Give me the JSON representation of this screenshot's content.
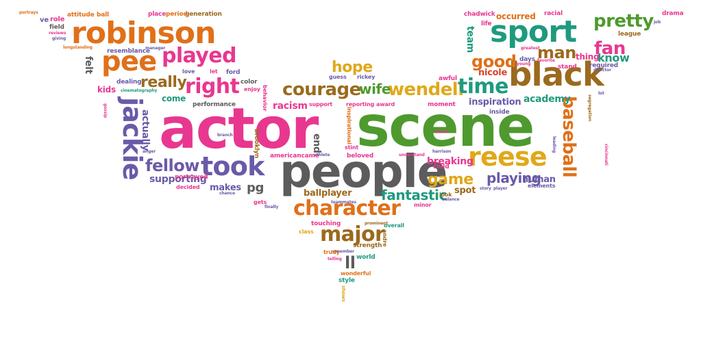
{
  "colors": {
    "pink": "#e8378f",
    "green": "#4e9a2e",
    "gray": "#5c5c5c",
    "orange": "#e07019",
    "teal": "#1f9a7e",
    "brown": "#9b6a1d",
    "purple": "#6a5aa8",
    "gold": "#e0a81a",
    "red": "#d9432b"
  },
  "words": [
    {
      "text": "actor",
      "color": "pink"
    },
    {
      "text": "scene",
      "color": "green"
    },
    {
      "text": "people",
      "color": "gray"
    },
    {
      "text": "black",
      "color": "brown"
    },
    {
      "text": "robinson",
      "color": "orange"
    },
    {
      "text": "sport",
      "color": "teal"
    },
    {
      "text": "jackie",
      "color": "purple"
    },
    {
      "text": "reese",
      "color": "gold"
    },
    {
      "text": "pee",
      "color": "orange"
    },
    {
      "text": "took",
      "color": "purple"
    },
    {
      "text": "character",
      "color": "orange"
    },
    {
      "text": "baseball",
      "color": "orange"
    },
    {
      "text": "played",
      "color": "pink"
    },
    {
      "text": "right",
      "color": "pink"
    },
    {
      "text": "courage",
      "color": "brown"
    },
    {
      "text": "wendell",
      "color": "gold"
    },
    {
      "text": "time",
      "color": "teal"
    },
    {
      "text": "major",
      "color": "brown"
    },
    {
      "text": "fellow",
      "color": "purple"
    },
    {
      "text": "pretty",
      "color": "green"
    },
    {
      "text": "fan",
      "color": "pink"
    },
    {
      "text": "good",
      "color": "orange"
    },
    {
      "text": "man",
      "color": "brown"
    },
    {
      "text": "hope",
      "color": "gold"
    },
    {
      "text": "game",
      "color": "gold"
    },
    {
      "text": "really",
      "color": "brown"
    },
    {
      "text": "fantastic",
      "color": "teal"
    },
    {
      "text": "playing",
      "color": "purple"
    },
    {
      "text": "wife",
      "color": "green"
    },
    {
      "text": "ll",
      "color": "gray"
    },
    {
      "text": "know",
      "color": "teal"
    },
    {
      "text": "felt",
      "color": "gray"
    },
    {
      "text": "team",
      "color": "teal"
    },
    {
      "text": "supporting",
      "color": "purple"
    },
    {
      "text": "pg",
      "color": "gray"
    },
    {
      "text": "breaking",
      "color": "pink"
    },
    {
      "text": "ballplayer",
      "color": "brown"
    },
    {
      "text": "inspiration",
      "color": "purple"
    },
    {
      "text": "academy",
      "color": "teal"
    },
    {
      "text": "actually",
      "color": "purple"
    },
    {
      "text": "racism",
      "color": "pink"
    },
    {
      "text": "makes",
      "color": "purple"
    },
    {
      "text": "human",
      "color": "purple"
    },
    {
      "text": "spot",
      "color": "brown"
    },
    {
      "text": "end",
      "color": "gray"
    },
    {
      "text": "kids",
      "color": "pink"
    },
    {
      "text": "come",
      "color": "teal"
    },
    {
      "text": "nicole",
      "color": "red"
    },
    {
      "text": "occurred",
      "color": "orange"
    },
    {
      "text": "thing",
      "color": "pink"
    },
    {
      "text": "chadwick",
      "color": "pink"
    },
    {
      "text": "generation",
      "color": "brown"
    },
    {
      "text": "dealing",
      "color": "purple"
    },
    {
      "text": "portrayed",
      "color": "pink"
    },
    {
      "text": "brooklyn",
      "color": "brown"
    },
    {
      "text": "americancame",
      "color": "pink"
    },
    {
      "text": "beloved",
      "color": "pink"
    },
    {
      "text": "touching",
      "color": "pink"
    },
    {
      "text": "class",
      "color": "gold"
    },
    {
      "text": "strength",
      "color": "brown"
    },
    {
      "text": "world",
      "color": "teal"
    },
    {
      "text": "style",
      "color": "teal"
    },
    {
      "text": "wonderful",
      "color": "orange"
    },
    {
      "text": "shows",
      "color": "gold"
    },
    {
      "text": "required",
      "color": "purple"
    },
    {
      "text": "league",
      "color": "brown"
    },
    {
      "text": "director",
      "color": "purple"
    },
    {
      "text": "drama",
      "color": "pink"
    },
    {
      "text": "racial",
      "color": "pink"
    },
    {
      "text": "stand",
      "color": "pink"
    },
    {
      "text": "days",
      "color": "purple"
    },
    {
      "text": "awful",
      "color": "pink"
    },
    {
      "text": "moment",
      "color": "pink"
    },
    {
      "text": "child",
      "color": "pink"
    },
    {
      "text": "look",
      "color": "brown"
    },
    {
      "text": "minor",
      "color": "pink"
    },
    {
      "text": "elements",
      "color": "purple"
    },
    {
      "text": "inside",
      "color": "purple"
    },
    {
      "text": "performance",
      "color": "gray"
    },
    {
      "text": "color",
      "color": "gray"
    },
    {
      "text": "enjoy",
      "color": "pink"
    },
    {
      "text": "ford",
      "color": "purple"
    },
    {
      "text": "let",
      "color": "pink"
    },
    {
      "text": "love",
      "color": "purple"
    },
    {
      "text": "resemblance",
      "color": "purple"
    },
    {
      "text": "manager",
      "color": "purple"
    },
    {
      "text": "place",
      "color": "pink"
    },
    {
      "text": "period",
      "color": "orange"
    },
    {
      "text": "attitude",
      "color": "orange"
    },
    {
      "text": "ball",
      "color": "orange"
    },
    {
      "text": "ve",
      "color": "purple"
    },
    {
      "text": "role",
      "color": "pink"
    },
    {
      "text": "field",
      "color": "gray"
    },
    {
      "text": "portrays",
      "color": "orange"
    },
    {
      "text": "reviews",
      "color": "pink"
    },
    {
      "text": "giving",
      "color": "purple"
    },
    {
      "text": "longstanding",
      "color": "orange"
    },
    {
      "text": "guess",
      "color": "purple"
    },
    {
      "text": "rickey",
      "color": "purple"
    },
    {
      "text": "support",
      "color": "pink"
    },
    {
      "text": "reporting",
      "color": "pink"
    },
    {
      "text": "award",
      "color": "pink"
    },
    {
      "text": "inspirational",
      "color": "orange"
    },
    {
      "text": "stint",
      "color": "pink"
    },
    {
      "text": "teammates",
      "color": "purple"
    },
    {
      "text": "overall",
      "color": "teal"
    },
    {
      "text": "andre",
      "color": "brown"
    },
    {
      "text": "prominent",
      "color": "brown"
    },
    {
      "text": "remember",
      "color": "purple"
    },
    {
      "text": "telling",
      "color": "pink"
    },
    {
      "text": "trudy",
      "color": "orange"
    },
    {
      "text": "finally",
      "color": "purple"
    },
    {
      "text": "gets",
      "color": "pink"
    },
    {
      "text": "chance",
      "color": "purple"
    },
    {
      "text": "decided",
      "color": "pink"
    },
    {
      "text": "behavior",
      "color": "pink"
    },
    {
      "text": "branch",
      "color": "purple"
    },
    {
      "text": "anger",
      "color": "purple"
    },
    {
      "text": "cinematography",
      "color": "teal"
    },
    {
      "text": "life",
      "color": "pink"
    },
    {
      "text": "greatest",
      "color": "pink"
    },
    {
      "text": "favorite",
      "color": "pink"
    },
    {
      "text": "young",
      "color": "pink"
    },
    {
      "text": "leading",
      "color": "purple"
    },
    {
      "text": "segregation",
      "color": "brown"
    },
    {
      "text": "cincinnati",
      "color": "pink"
    },
    {
      "text": "lot",
      "color": "purple"
    },
    {
      "text": "job",
      "color": "purple"
    },
    {
      "text": "harrison",
      "color": "purple"
    },
    {
      "text": "balance",
      "color": "purple"
    },
    {
      "text": "story",
      "color": "purple"
    },
    {
      "text": "player",
      "color": "purple"
    },
    {
      "text": "athlete",
      "color": "purple"
    },
    {
      "text": "understand",
      "color": "pink"
    },
    {
      "text": "classic",
      "color": "pink"
    },
    {
      "text": "gossip",
      "color": "pink"
    }
  ]
}
